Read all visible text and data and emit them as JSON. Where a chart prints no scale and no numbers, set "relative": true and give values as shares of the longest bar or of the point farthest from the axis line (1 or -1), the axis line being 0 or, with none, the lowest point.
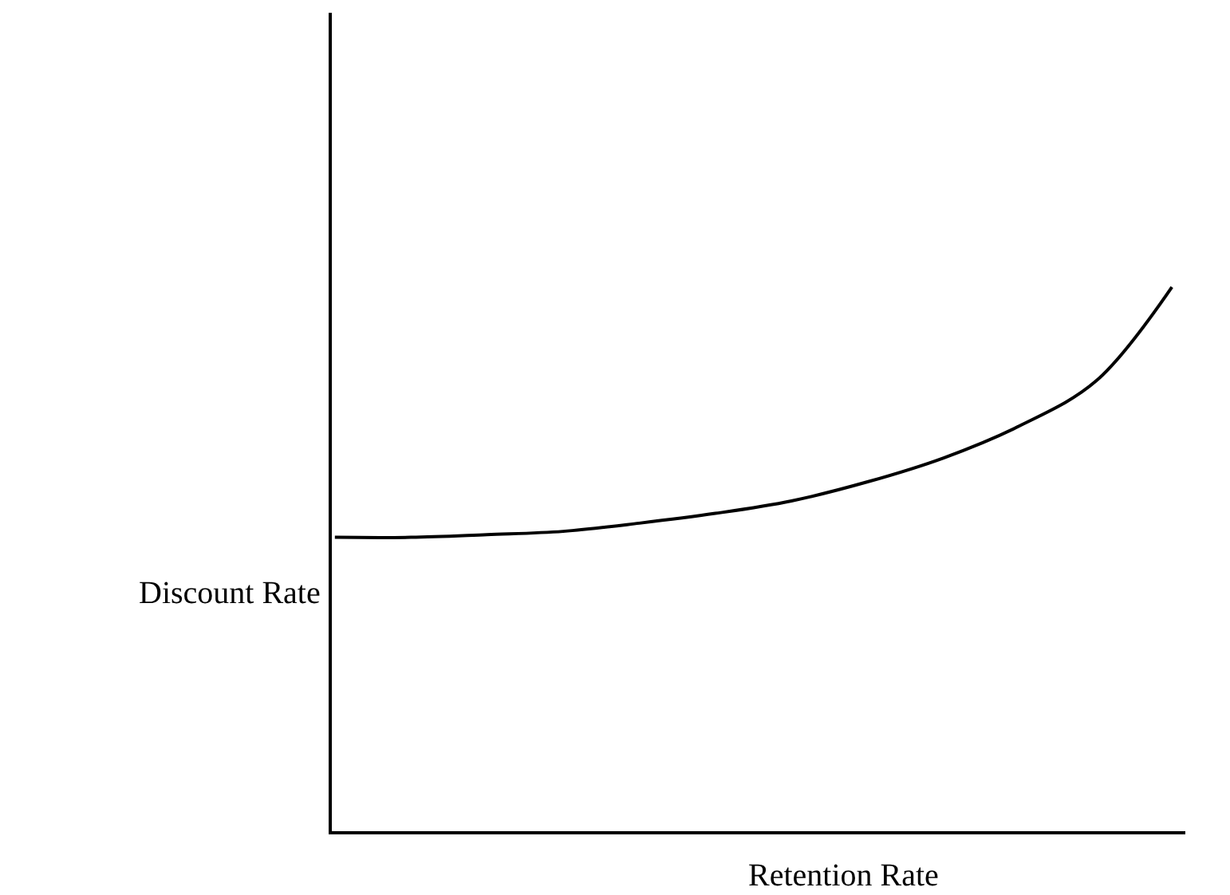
{
  "chart_data": {
    "type": "line",
    "relative": true,
    "xlabel": "Retention Rate",
    "ylabel": "Discount Rate",
    "categories": [
      null,
      null,
      null,
      null,
      null,
      null,
      null,
      null,
      null,
      null,
      null,
      null
    ],
    "series": [
      {
        "color": "#000000",
        "values": [
          0.54,
          0.54,
          0.545,
          0.551,
          0.566,
          0.584,
          0.607,
          0.642,
          0.686,
          0.745,
          0.827,
          1.0
        ]
      }
    ],
    "marker": "none",
    "line_style": "solid"
  }
}
